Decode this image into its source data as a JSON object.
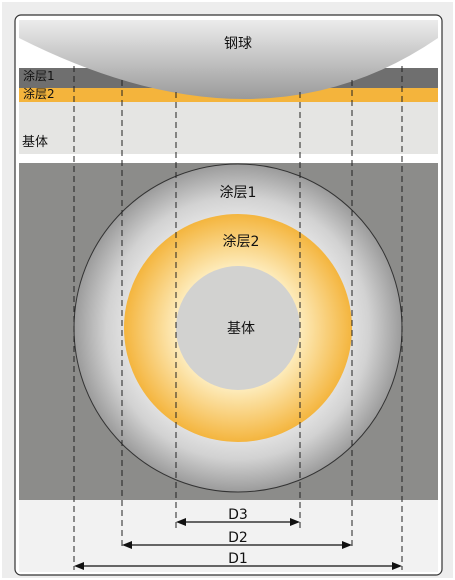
{
  "labels": {
    "ball": "钢球",
    "coating1_top": "涂层1",
    "coating2_top": "涂层2",
    "substrate_top": "基体",
    "coating1_center": "涂层1",
    "coating2_center": "涂层2",
    "substrate_center": "基体",
    "d3": "D3",
    "d2": "D2",
    "d1": "D1"
  },
  "colors": {
    "frame_gray": "#ededed",
    "coating1": "#6f6f6f",
    "coating2": "#f4b43c",
    "substrate": "#8c8c8a",
    "crater_core": "#d2d2d0",
    "ring_inner": "#fdeab8",
    "ring_outer": "#f4b53e"
  }
}
